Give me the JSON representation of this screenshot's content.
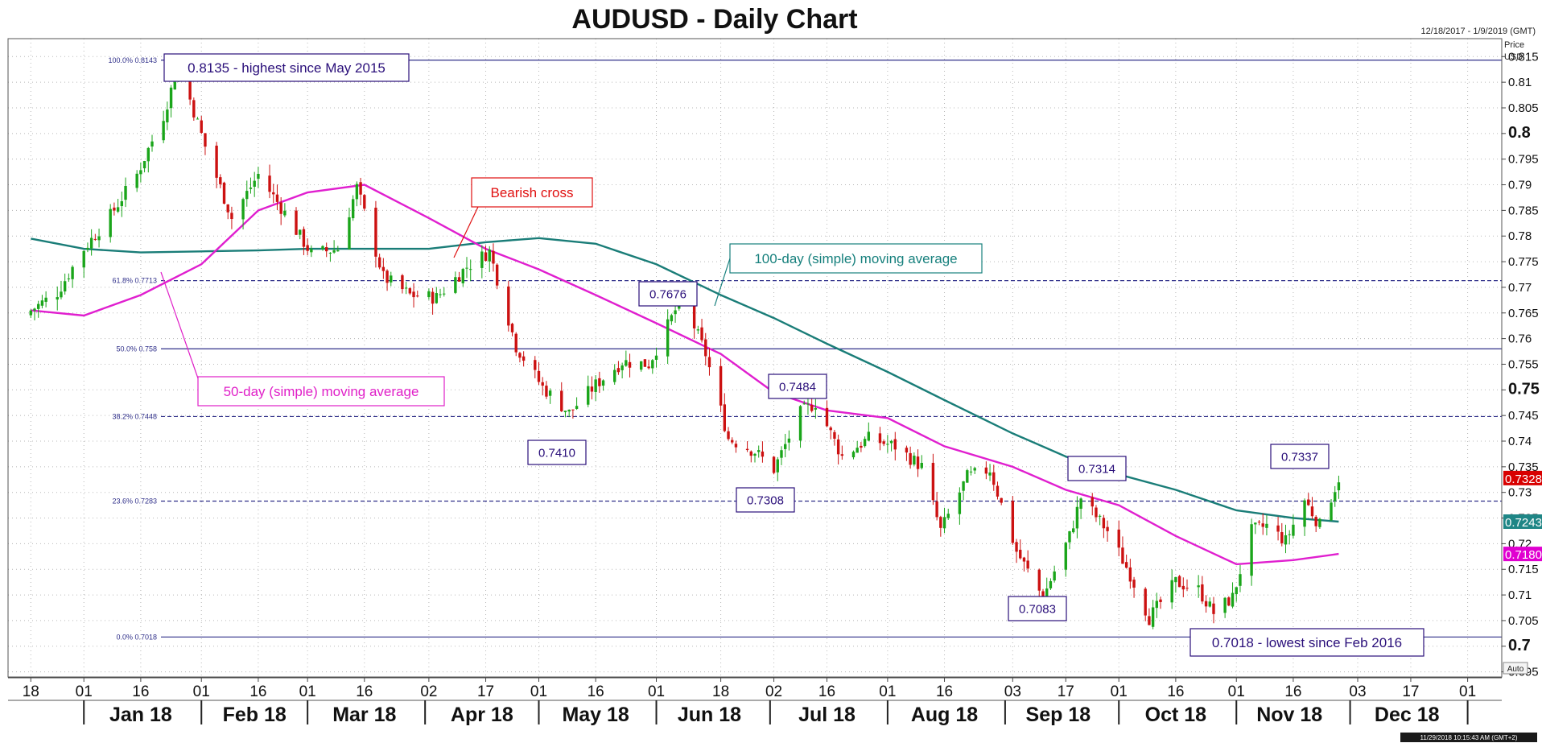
{
  "chart_data": {
    "type": "candlestick",
    "title": "AUDUSD - Daily Chart",
    "date_range": "12/18/2017 - 1/9/2019 (GMT)",
    "y_axis_title": [
      "Price",
      "USD"
    ],
    "auto_label": "Auto",
    "footer_stamp": "11/29/2018 10:15:43 AM (GMT+2)",
    "ylim": [
      0.694,
      0.8185
    ],
    "y_ticks": [
      0.695,
      0.7,
      0.705,
      0.71,
      0.715,
      0.72,
      0.725,
      0.73,
      0.735,
      0.74,
      0.745,
      0.75,
      0.755,
      0.76,
      0.765,
      0.77,
      0.775,
      0.78,
      0.785,
      0.79,
      0.795,
      0.8,
      0.805,
      0.81,
      0.815
    ],
    "y_tick_labels": [
      "0.695",
      "0.7",
      "0.705",
      "0.71",
      "0.715",
      "0.72",
      "0.725",
      "0.73",
      "0.735",
      "0.74",
      "0.745",
      "0.75",
      "0.755",
      "0.76",
      "0.765",
      "0.77",
      "0.775",
      "0.78",
      "0.785",
      "0.79",
      "0.795",
      "0.8",
      "0.805",
      "0.81",
      "0.815"
    ],
    "y_bold_ticks": [
      "0.7",
      "0.75",
      "0.8"
    ],
    "x_day_ticks": [
      {
        "label": "18",
        "date": "2017-12-18"
      },
      {
        "label": "01",
        "date": "2018-01-01"
      },
      {
        "label": "16",
        "date": "2018-01-16"
      },
      {
        "label": "01",
        "date": "2018-02-01"
      },
      {
        "label": "16",
        "date": "2018-02-16"
      },
      {
        "label": "01",
        "date": "2018-03-01"
      },
      {
        "label": "16",
        "date": "2018-03-16"
      },
      {
        "label": "02",
        "date": "2018-04-02"
      },
      {
        "label": "17",
        "date": "2018-04-17"
      },
      {
        "label": "01",
        "date": "2018-05-01"
      },
      {
        "label": "16",
        "date": "2018-05-16"
      },
      {
        "label": "01",
        "date": "2018-06-01"
      },
      {
        "label": "18",
        "date": "2018-06-18"
      },
      {
        "label": "02",
        "date": "2018-07-02"
      },
      {
        "label": "16",
        "date": "2018-07-16"
      },
      {
        "label": "01",
        "date": "2018-08-01"
      },
      {
        "label": "16",
        "date": "2018-08-16"
      },
      {
        "label": "03",
        "date": "2018-09-03"
      },
      {
        "label": "17",
        "date": "2018-09-17"
      },
      {
        "label": "01",
        "date": "2018-10-01"
      },
      {
        "label": "16",
        "date": "2018-10-16"
      },
      {
        "label": "01",
        "date": "2018-11-01"
      },
      {
        "label": "16",
        "date": "2018-11-16"
      },
      {
        "label": "03",
        "date": "2018-12-03"
      },
      {
        "label": "17",
        "date": "2018-12-17"
      },
      {
        "label": "01",
        "date": "2019-01-01"
      }
    ],
    "x_month_labels": [
      {
        "label": "Jan 18",
        "date": "2018-01-16"
      },
      {
        "label": "Feb 18",
        "date": "2018-02-15"
      },
      {
        "label": "Mar 18",
        "date": "2018-03-16"
      },
      {
        "label": "Apr 18",
        "date": "2018-04-16"
      },
      {
        "label": "May 18",
        "date": "2018-05-16"
      },
      {
        "label": "Jun 18",
        "date": "2018-06-15"
      },
      {
        "label": "Jul 18",
        "date": "2018-07-16"
      },
      {
        "label": "Aug 18",
        "date": "2018-08-16"
      },
      {
        "label": "Sep 18",
        "date": "2018-09-15"
      },
      {
        "label": "Oct 18",
        "date": "2018-10-16"
      },
      {
        "label": "Nov 18",
        "date": "2018-11-15"
      },
      {
        "label": "Dec 18",
        "date": "2018-12-16"
      }
    ],
    "x_month_separators": [
      "2018-01-01",
      "2018-02-01",
      "2018-03-01",
      "2018-04-01",
      "2018-05-01",
      "2018-06-01",
      "2018-07-01",
      "2018-08-01",
      "2018-09-01",
      "2018-10-01",
      "2018-11-01",
      "2018-12-01",
      "2019-01-01"
    ],
    "price_line": {
      "data": [
        [
          "2017-12-18",
          0.7655
        ],
        [
          "2017-12-25",
          0.769
        ],
        [
          "2018-01-01",
          0.7775
        ],
        [
          "2018-01-08",
          0.784
        ],
        [
          "2018-01-15",
          0.792
        ],
        [
          "2018-01-22",
          0.8035
        ],
        [
          "2018-01-26",
          0.8135
        ],
        [
          "2018-02-02",
          0.7975
        ],
        [
          "2018-02-09",
          0.7835
        ],
        [
          "2018-02-16",
          0.792
        ],
        [
          "2018-02-23",
          0.7845
        ],
        [
          "2018-03-02",
          0.7765
        ],
        [
          "2018-03-09",
          0.7775
        ],
        [
          "2018-03-14",
          0.7895
        ],
        [
          "2018-03-21",
          0.772
        ],
        [
          "2018-03-28",
          0.7685
        ],
        [
          "2018-04-04",
          0.768
        ],
        [
          "2018-04-12",
          0.774
        ],
        [
          "2018-04-18",
          0.777
        ],
        [
          "2018-04-25",
          0.7585
        ],
        [
          "2018-05-02",
          0.7505
        ],
        [
          "2018-05-09",
          0.7455
        ],
        [
          "2018-05-16",
          0.751
        ],
        [
          "2018-05-23",
          0.7555
        ],
        [
          "2018-05-30",
          0.755
        ],
        [
          "2018-06-06",
          0.7655
        ],
        [
          "2018-06-08",
          0.7676
        ],
        [
          "2018-06-14",
          0.757
        ],
        [
          "2018-06-20",
          0.7405
        ],
        [
          "2018-06-27",
          0.738
        ],
        [
          "2018-07-02",
          0.7345
        ],
        [
          "2018-07-09",
          0.7455
        ],
        [
          "2018-07-13",
          0.7475
        ],
        [
          "2018-07-20",
          0.737
        ],
        [
          "2018-07-27",
          0.7405
        ],
        [
          "2018-08-03",
          0.739
        ],
        [
          "2018-08-10",
          0.735
        ],
        [
          "2018-08-15",
          0.7225
        ],
        [
          "2018-08-22",
          0.733
        ],
        [
          "2018-08-28",
          0.7345
        ],
        [
          "2018-09-04",
          0.7185
        ],
        [
          "2018-09-11",
          0.7095
        ],
        [
          "2018-09-18",
          0.7215
        ],
        [
          "2018-09-21",
          0.729
        ],
        [
          "2018-09-28",
          0.7225
        ],
        [
          "2018-10-04",
          0.714
        ],
        [
          "2018-10-09",
          0.7055
        ],
        [
          "2018-10-16",
          0.7125
        ],
        [
          "2018-10-22",
          0.711
        ],
        [
          "2018-10-26",
          0.7065
        ],
        [
          "2018-10-31",
          0.7095
        ],
        [
          "2018-11-05",
          0.7225
        ],
        [
          "2018-11-09",
          0.7235
        ],
        [
          "2018-11-14",
          0.7205
        ],
        [
          "2018-11-19",
          0.7285
        ],
        [
          "2018-11-23",
          0.7235
        ],
        [
          "2018-11-28",
          0.7328
        ]
      ]
    },
    "ma50": {
      "data": [
        [
          "2017-12-18",
          0.7655
        ],
        [
          "2018-01-01",
          0.7645
        ],
        [
          "2018-01-16",
          0.7685
        ],
        [
          "2018-02-01",
          0.7745
        ],
        [
          "2018-02-16",
          0.785
        ],
        [
          "2018-03-01",
          0.7885
        ],
        [
          "2018-03-16",
          0.79
        ],
        [
          "2018-04-02",
          0.7835
        ],
        [
          "2018-04-17",
          0.7775
        ],
        [
          "2018-05-01",
          0.7735
        ],
        [
          "2018-05-16",
          0.7685
        ],
        [
          "2018-06-01",
          0.763
        ],
        [
          "2018-06-18",
          0.757
        ],
        [
          "2018-07-02",
          0.7495
        ],
        [
          "2018-07-16",
          0.746
        ],
        [
          "2018-08-01",
          0.7445
        ],
        [
          "2018-08-16",
          0.739
        ],
        [
          "2018-09-03",
          0.735
        ],
        [
          "2018-09-17",
          0.7305
        ],
        [
          "2018-10-01",
          0.7275
        ],
        [
          "2018-10-16",
          0.7215
        ],
        [
          "2018-11-01",
          0.716
        ],
        [
          "2018-11-16",
          0.7168
        ],
        [
          "2018-11-28",
          0.718
        ]
      ]
    },
    "ma100": {
      "data": [
        [
          "2017-12-18",
          0.7795
        ],
        [
          "2018-01-01",
          0.7775
        ],
        [
          "2018-01-16",
          0.7768
        ],
        [
          "2018-02-01",
          0.777
        ],
        [
          "2018-02-16",
          0.7772
        ],
        [
          "2018-03-01",
          0.7775
        ],
        [
          "2018-03-16",
          0.7775
        ],
        [
          "2018-04-02",
          0.7775
        ],
        [
          "2018-04-17",
          0.7788
        ],
        [
          "2018-05-01",
          0.7796
        ],
        [
          "2018-05-16",
          0.7785
        ],
        [
          "2018-06-01",
          0.7745
        ],
        [
          "2018-06-18",
          0.7685
        ],
        [
          "2018-07-02",
          0.764
        ],
        [
          "2018-07-16",
          0.759
        ],
        [
          "2018-08-01",
          0.7535
        ],
        [
          "2018-08-16",
          0.748
        ],
        [
          "2018-09-03",
          0.7415
        ],
        [
          "2018-09-17",
          0.737
        ],
        [
          "2018-10-01",
          0.7335
        ],
        [
          "2018-10-16",
          0.7305
        ],
        [
          "2018-11-01",
          0.7265
        ],
        [
          "2018-11-16",
          0.725
        ],
        [
          "2018-11-28",
          0.7243
        ]
      ]
    },
    "fib_levels": [
      {
        "label": "100.0% 0.8143",
        "value": 0.8143
      },
      {
        "label": "61.8% 0.7713",
        "value": 0.7713
      },
      {
        "label": "50.0% 0.758",
        "value": 0.758
      },
      {
        "label": "38.2% 0.7448",
        "value": 0.7448
      },
      {
        "label": "23.6% 0.7283",
        "value": 0.7283
      },
      {
        "label": "0.0% 0.7018",
        "value": 0.7018
      }
    ],
    "price_tags": [
      {
        "text": "0.7328",
        "value": 0.7328,
        "color": "#d80000"
      },
      {
        "text": "0.7243",
        "value": 0.7243,
        "color": "#1f8686"
      },
      {
        "text": "0.7180",
        "value": 0.718,
        "color": "#e000d0"
      }
    ],
    "annotations": [
      {
        "text": "0.8135 - highest since May 2015",
        "color": "#2a0f7a"
      },
      {
        "text": "Bearish cross",
        "color": "#e01010"
      },
      {
        "text": "100-day (simple) moving average",
        "color": "#17807d"
      },
      {
        "text": "50-day (simple) moving average",
        "color": "#e020c8"
      },
      {
        "text": "0.7676",
        "color": "#2a0f7a"
      },
      {
        "text": "0.7484",
        "color": "#2a0f7a"
      },
      {
        "text": "0.7410",
        "color": "#2a0f7a"
      },
      {
        "text": "0.7308",
        "color": "#2a0f7a"
      },
      {
        "text": "0.7314",
        "color": "#2a0f7a"
      },
      {
        "text": "0.7337",
        "color": "#2a0f7a"
      },
      {
        "text": "0.7083",
        "color": "#2a0f7a"
      },
      {
        "text": "0.7018 - lowest since Feb 2016",
        "color": "#2a0f7a"
      }
    ],
    "colors": {
      "up": "#1aa51a",
      "down": "#cc1111",
      "ma50": "#e01fcf",
      "ma100": "#1a7d78",
      "fib": "#30308a",
      "grid": "#b8b8b8"
    }
  }
}
